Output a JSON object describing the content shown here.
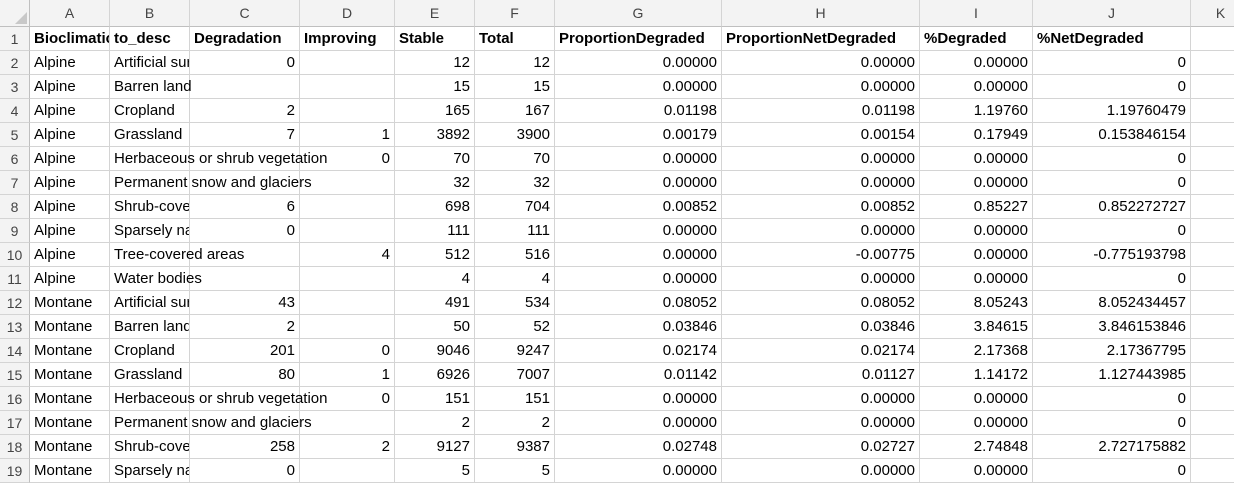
{
  "columns": [
    "A",
    "B",
    "C",
    "D",
    "E",
    "F",
    "G",
    "H",
    "I",
    "J",
    "K"
  ],
  "header_row": [
    "Bioclimatic",
    "to_desc",
    "Degradation",
    "Improving",
    "Stable",
    "Total",
    "ProportionDegraded",
    "ProportionNetDegraded",
    "%Degraded",
    "%NetDegraded",
    ""
  ],
  "rows": [
    {
      "num": "1"
    },
    {
      "num": "2",
      "cells": [
        "Alpine",
        "Artificial surfaces",
        "0",
        "",
        "12",
        "12",
        "0.00000",
        "0.00000",
        "0.00000",
        "0",
        ""
      ]
    },
    {
      "num": "3",
      "cells": [
        "Alpine",
        "Barren land",
        "",
        "",
        "15",
        "15",
        "0.00000",
        "0.00000",
        "0.00000",
        "0",
        ""
      ]
    },
    {
      "num": "4",
      "cells": [
        "Alpine",
        "Cropland",
        "2",
        "",
        "165",
        "167",
        "0.01198",
        "0.01198",
        "1.19760",
        "1.19760479",
        ""
      ]
    },
    {
      "num": "5",
      "cells": [
        "Alpine",
        "Grassland",
        "7",
        "1",
        "3892",
        "3900",
        "0.00179",
        "0.00154",
        "0.17949",
        "0.153846154",
        ""
      ]
    },
    {
      "num": "6",
      "cells": [
        "Alpine",
        "Herbaceous or shrub vegetation",
        "",
        "0",
        "70",
        "70",
        "0.00000",
        "0.00000",
        "0.00000",
        "0",
        ""
      ]
    },
    {
      "num": "7",
      "cells": [
        "Alpine",
        "Permanent snow and glaciers",
        "",
        "",
        "32",
        "32",
        "0.00000",
        "0.00000",
        "0.00000",
        "0",
        ""
      ]
    },
    {
      "num": "8",
      "cells": [
        "Alpine",
        "Shrub-covered areas",
        "6",
        "",
        "698",
        "704",
        "0.00852",
        "0.00852",
        "0.85227",
        "0.852272727",
        ""
      ]
    },
    {
      "num": "9",
      "cells": [
        "Alpine",
        "Sparsely natural vegetated areas",
        "0",
        "",
        "111",
        "111",
        "0.00000",
        "0.00000",
        "0.00000",
        "0",
        ""
      ]
    },
    {
      "num": "10",
      "cells": [
        "Alpine",
        "Tree-covered areas",
        "",
        "4",
        "512",
        "516",
        "0.00000",
        "-0.00775",
        "0.00000",
        "-0.775193798",
        ""
      ]
    },
    {
      "num": "11",
      "cells": [
        "Alpine",
        "Water bodies",
        "",
        "",
        "4",
        "4",
        "0.00000",
        "0.00000",
        "0.00000",
        "0",
        ""
      ]
    },
    {
      "num": "12",
      "cells": [
        "Montane",
        "Artificial surfaces",
        "43",
        "",
        "491",
        "534",
        "0.08052",
        "0.08052",
        "8.05243",
        "8.052434457",
        ""
      ]
    },
    {
      "num": "13",
      "cells": [
        "Montane",
        "Barren land",
        "2",
        "",
        "50",
        "52",
        "0.03846",
        "0.03846",
        "3.84615",
        "3.846153846",
        ""
      ]
    },
    {
      "num": "14",
      "cells": [
        "Montane",
        "Cropland",
        "201",
        "0",
        "9046",
        "9247",
        "0.02174",
        "0.02174",
        "2.17368",
        "2.17367795",
        ""
      ]
    },
    {
      "num": "15",
      "cells": [
        "Montane",
        "Grassland",
        "80",
        "1",
        "6926",
        "7007",
        "0.01142",
        "0.01127",
        "1.14172",
        "1.127443985",
        ""
      ]
    },
    {
      "num": "16",
      "cells": [
        "Montane",
        "Herbaceous or shrub vegetation",
        "",
        "0",
        "151",
        "151",
        "0.00000",
        "0.00000",
        "0.00000",
        "0",
        ""
      ]
    },
    {
      "num": "17",
      "cells": [
        "Montane",
        "Permanent snow and glaciers",
        "",
        "",
        "2",
        "2",
        "0.00000",
        "0.00000",
        "0.00000",
        "0",
        ""
      ]
    },
    {
      "num": "18",
      "cells": [
        "Montane",
        "Shrub-covered areas",
        "258",
        "2",
        "9127",
        "9387",
        "0.02748",
        "0.02727",
        "2.74848",
        "2.727175882",
        ""
      ]
    },
    {
      "num": "19",
      "cells": [
        "Montane",
        "Sparsely natural vegetated areas",
        "0",
        "",
        "5",
        "5",
        "0.00000",
        "0.00000",
        "0.00000",
        "0",
        ""
      ]
    }
  ],
  "colors": {
    "header_bg": "#f3f3f3",
    "gridline": "#d4d4d4",
    "text": "#000000"
  }
}
